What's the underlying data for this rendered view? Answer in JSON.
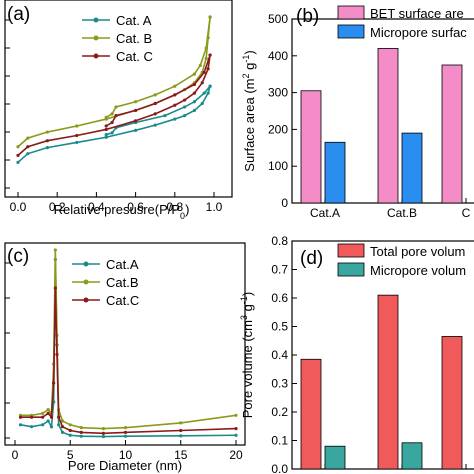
{
  "chart_data": [
    {
      "panel": "(a)",
      "type": "line",
      "xlabel": "Relative presusre(P/P0)",
      "ylabel": "",
      "xlim": [
        0,
        1
      ],
      "xticks": [
        "0.0",
        "0.2",
        "0.4",
        "0.6",
        "0.8",
        "1.0"
      ],
      "legend_position": "top-left",
      "series": [
        {
          "name": "Cat. A",
          "color": "#1a8a8a",
          "adsorption": [
            [
              0.0,
              0.16
            ],
            [
              0.05,
              0.21
            ],
            [
              0.15,
              0.245
            ],
            [
              0.3,
              0.275
            ],
            [
              0.45,
              0.305
            ],
            [
              0.6,
              0.345
            ],
            [
              0.7,
              0.375
            ],
            [
              0.8,
              0.41
            ],
            [
              0.85,
              0.43
            ],
            [
              0.9,
              0.46
            ],
            [
              0.94,
              0.5
            ],
            [
              0.97,
              0.56
            ],
            [
              0.98,
              0.6
            ]
          ],
          "desorption": [
            [
              0.98,
              0.6
            ],
            [
              0.95,
              0.56
            ],
            [
              0.9,
              0.51
            ],
            [
              0.85,
              0.48
            ],
            [
              0.75,
              0.43
            ],
            [
              0.6,
              0.39
            ],
            [
              0.5,
              0.36
            ],
            [
              0.48,
              0.33
            ],
            [
              0.45,
              0.32
            ]
          ]
        },
        {
          "name": "Cat. B",
          "color": "#8c9a1a",
          "adsorption": [
            [
              0.0,
              0.25
            ],
            [
              0.05,
              0.3
            ],
            [
              0.15,
              0.335
            ],
            [
              0.3,
              0.37
            ],
            [
              0.45,
              0.41
            ],
            [
              0.6,
              0.46
            ],
            [
              0.7,
              0.5
            ],
            [
              0.8,
              0.55
            ],
            [
              0.85,
              0.58
            ],
            [
              0.9,
              0.62
            ],
            [
              0.94,
              0.68
            ],
            [
              0.96,
              0.76
            ],
            [
              0.97,
              0.88
            ],
            [
              0.98,
              1.0
            ]
          ],
          "desorption": [
            [
              0.98,
              1.0
            ],
            [
              0.96,
              0.82
            ],
            [
              0.93,
              0.72
            ],
            [
              0.9,
              0.67
            ],
            [
              0.8,
              0.6
            ],
            [
              0.7,
              0.55
            ],
            [
              0.6,
              0.51
            ],
            [
              0.5,
              0.48
            ],
            [
              0.48,
              0.44
            ],
            [
              0.45,
              0.42
            ]
          ]
        },
        {
          "name": "Cat. C",
          "color": "#8b1a1a",
          "adsorption": [
            [
              0.0,
              0.2
            ],
            [
              0.05,
              0.25
            ],
            [
              0.15,
              0.285
            ],
            [
              0.3,
              0.315
            ],
            [
              0.45,
              0.35
            ],
            [
              0.6,
              0.4
            ],
            [
              0.7,
              0.44
            ],
            [
              0.8,
              0.49
            ],
            [
              0.85,
              0.52
            ],
            [
              0.9,
              0.56
            ],
            [
              0.94,
              0.62
            ],
            [
              0.97,
              0.7
            ],
            [
              0.98,
              0.78
            ]
          ],
          "desorption": [
            [
              0.98,
              0.78
            ],
            [
              0.95,
              0.68
            ],
            [
              0.9,
              0.61
            ],
            [
              0.8,
              0.55
            ],
            [
              0.7,
              0.5
            ],
            [
              0.6,
              0.46
            ],
            [
              0.5,
              0.43
            ],
            [
              0.48,
              0.39
            ],
            [
              0.45,
              0.37
            ]
          ]
        }
      ]
    },
    {
      "panel": "(b)",
      "type": "bar",
      "ylabel": "Surface area (m2 g-1)",
      "ylim": [
        0,
        500
      ],
      "yticks": [
        "0",
        "100",
        "200",
        "300",
        "400",
        "500"
      ],
      "categories": [
        "Cat.A",
        "Cat.B",
        "C"
      ],
      "legend_position": "top",
      "series": [
        {
          "name": "BET surface are",
          "color": "#f48cc8",
          "values": [
            305,
            420,
            375
          ]
        },
        {
          "name": "Micropore surfac",
          "color": "#2a8ef0",
          "values": [
            165,
            190,
            null
          ]
        }
      ]
    },
    {
      "panel": "(c)",
      "type": "line",
      "xlabel": "Pore Diameter (nm)",
      "xlim": [
        0,
        20
      ],
      "xticks": [
        "0",
        "5",
        "10",
        "15",
        "20"
      ],
      "legend_position": "top-left",
      "series": [
        {
          "name": "Cat.A",
          "color": "#1a8a8a",
          "points": [
            [
              0.5,
              0.08
            ],
            [
              1.5,
              0.07
            ],
            [
              2.5,
              0.08
            ],
            [
              3.0,
              0.1
            ],
            [
              3.3,
              0.07
            ],
            [
              3.5,
              0.2
            ],
            [
              3.65,
              0.95
            ],
            [
              3.8,
              0.5
            ],
            [
              3.95,
              0.08
            ],
            [
              4.3,
              0.04
            ],
            [
              5,
              0.025
            ],
            [
              6,
              0.02
            ],
            [
              8,
              0.018
            ],
            [
              10,
              0.02
            ],
            [
              15,
              0.022
            ],
            [
              20,
              0.025
            ]
          ]
        },
        {
          "name": "Cat.B",
          "color": "#8c9a1a",
          "points": [
            [
              0.5,
              0.13
            ],
            [
              1.5,
              0.13
            ],
            [
              2.5,
              0.14
            ],
            [
              3.0,
              0.16
            ],
            [
              3.3,
              0.14
            ],
            [
              3.5,
              0.4
            ],
            [
              3.65,
              1.0
            ],
            [
              3.8,
              0.55
            ],
            [
              3.95,
              0.16
            ],
            [
              4.3,
              0.1
            ],
            [
              5,
              0.08
            ],
            [
              6,
              0.065
            ],
            [
              8,
              0.06
            ],
            [
              10,
              0.065
            ],
            [
              15,
              0.09
            ],
            [
              20,
              0.13
            ]
          ]
        },
        {
          "name": "Cat.C",
          "color": "#8b1a1a",
          "points": [
            [
              0.5,
              0.12
            ],
            [
              1.5,
              0.12
            ],
            [
              2.5,
              0.12
            ],
            [
              3.0,
              0.14
            ],
            [
              3.3,
              0.12
            ],
            [
              3.5,
              0.3
            ],
            [
              3.65,
              0.8
            ],
            [
              3.8,
              0.45
            ],
            [
              3.95,
              0.12
            ],
            [
              4.3,
              0.07
            ],
            [
              5,
              0.05
            ],
            [
              6,
              0.04
            ],
            [
              8,
              0.035
            ],
            [
              10,
              0.04
            ],
            [
              15,
              0.05
            ],
            [
              20,
              0.06
            ]
          ]
        }
      ]
    },
    {
      "panel": "(d)",
      "type": "bar",
      "ylabel": "Pore volume (cm3 g-1)",
      "ylim": [
        0,
        0.8
      ],
      "yticks": [
        "0.0",
        "0.1",
        "0.2",
        "0.3",
        "0.4",
        "0.5",
        "0.6",
        "0.7",
        "0.8"
      ],
      "categories": [
        "Cat.A",
        "Cat.B",
        "C"
      ],
      "legend_position": "top",
      "series": [
        {
          "name": "Total pore volum",
          "color": "#f05a5a",
          "values": [
            0.385,
            0.61,
            0.465
          ]
        },
        {
          "name": "Micropore volum",
          "color": "#3aa6a0",
          "values": [
            0.08,
            0.092,
            null
          ]
        }
      ]
    }
  ]
}
